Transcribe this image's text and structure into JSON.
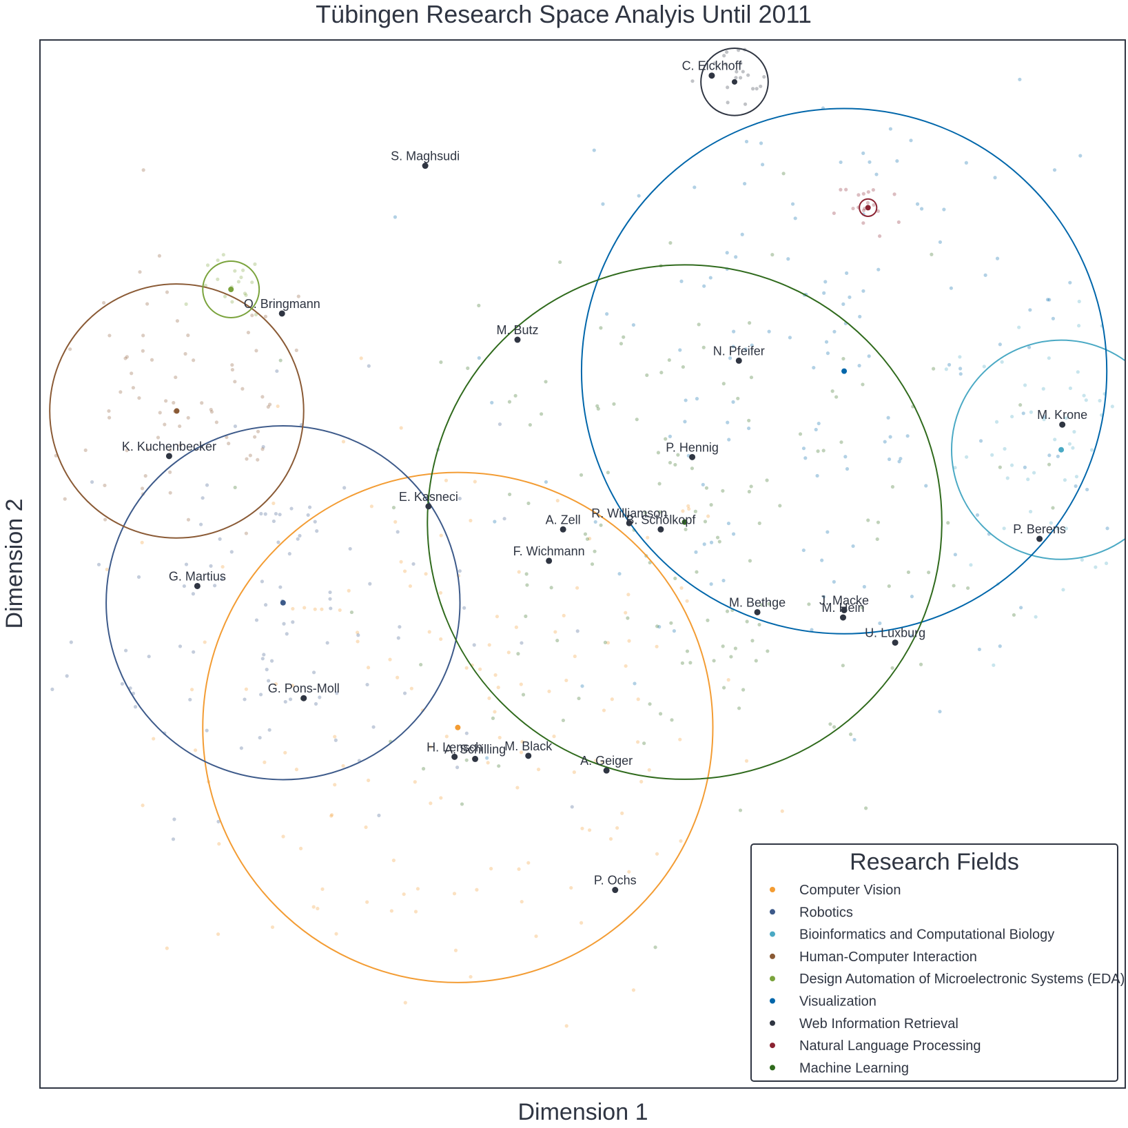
{
  "chart_data": {
    "type": "scatter",
    "title": "Tübingen Research Space Analyis Until 2011",
    "xlabel": "Dimension 1",
    "ylabel": "Dimension 2",
    "xlim": [
      0,
      100
    ],
    "ylim": [
      0,
      100
    ],
    "grid": false,
    "legend": {
      "title": "Research Fields",
      "position": "bottom-right"
    },
    "fields": [
      {
        "name": "Computer Vision",
        "color": "#f39c33"
      },
      {
        "name": "Robotics",
        "color": "#3d5a8a"
      },
      {
        "name": "Bioinformatics and Computational Biology",
        "color": "#4aa9c4"
      },
      {
        "name": "Human-Computer Interaction",
        "color": "#8a5a35"
      },
      {
        "name": "Design Automation of Microelectronic Systems (EDA)",
        "color": "#7aa33c"
      },
      {
        "name": "Visualization",
        "color": "#0066aa"
      },
      {
        "name": "Web Information Retrieval",
        "color": "#2f3542"
      },
      {
        "name": "Natural Language Processing",
        "color": "#8b2332"
      },
      {
        "name": "Machine Learning",
        "color": "#2f6a1c"
      }
    ],
    "field_circles": [
      {
        "field": "Computer Vision",
        "cx": 38.5,
        "cy": 34.4,
        "r": 23.5
      },
      {
        "field": "Robotics",
        "cx": 22.4,
        "cy": 46.3,
        "r": 16.3
      },
      {
        "field": "Bioinformatics and Computational Biology",
        "cx": 94.1,
        "cy": 60.9,
        "r": 10.1
      },
      {
        "field": "Human-Computer Interaction",
        "cx": 12.6,
        "cy": 64.6,
        "r": 11.7
      },
      {
        "field": "Design Automation of Microelectronic Systems (EDA)",
        "cx": 17.6,
        "cy": 76.2,
        "r": 2.6
      },
      {
        "field": "Visualization",
        "cx": 74.1,
        "cy": 68.4,
        "r": 24.2
      },
      {
        "field": "Web Information Retrieval",
        "cx": 64.0,
        "cy": 96.0,
        "r": 3.1
      },
      {
        "field": "Natural Language Processing",
        "cx": 76.3,
        "cy": 84.0,
        "r": 0.8
      },
      {
        "field": "Machine Learning",
        "cx": 59.4,
        "cy": 54.0,
        "r": 23.7
      }
    ],
    "researchers": [
      {
        "name": "C. Eickhoff",
        "x": 61.9,
        "y": 96.6
      },
      {
        "name": "S. Maghsudi",
        "x": 35.5,
        "y": 88.0
      },
      {
        "name": "O. Bringmann",
        "x": 22.3,
        "y": 73.9
      },
      {
        "name": "M. Butz",
        "x": 44.0,
        "y": 71.4
      },
      {
        "name": "N. Pfeifer",
        "x": 64.4,
        "y": 69.4
      },
      {
        "name": "M. Krone",
        "x": 94.2,
        "y": 63.3
      },
      {
        "name": "K. Kuchenbecker",
        "x": 11.9,
        "y": 60.3
      },
      {
        "name": "P. Hennig",
        "x": 60.1,
        "y": 60.2
      },
      {
        "name": "E. Kasneci",
        "x": 35.8,
        "y": 55.5
      },
      {
        "name": "A. Zell",
        "x": 48.2,
        "y": 53.3
      },
      {
        "name": "R. Williamson",
        "x": 54.3,
        "y": 53.9
      },
      {
        "name": "B. Schölkopf",
        "x": 57.2,
        "y": 53.3
      },
      {
        "name": "F. Wichmann",
        "x": 46.9,
        "y": 50.3
      },
      {
        "name": "P. Berens",
        "x": 92.1,
        "y": 52.4
      },
      {
        "name": "G. Martius",
        "x": 14.5,
        "y": 47.9
      },
      {
        "name": "M. Bethge",
        "x": 66.1,
        "y": 45.4
      },
      {
        "name": "J. Macke",
        "x": 74.1,
        "y": 45.6
      },
      {
        "name": "M. Hein",
        "x": 74.0,
        "y": 44.9
      },
      {
        "name": "U. Luxburg",
        "x": 78.8,
        "y": 42.5
      },
      {
        "name": "G. Pons-Moll",
        "x": 24.3,
        "y": 37.2
      },
      {
        "name": "H. Lensch",
        "x": 38.2,
        "y": 31.6
      },
      {
        "name": "A. Schilling",
        "x": 40.1,
        "y": 31.4
      },
      {
        "name": "M. Black",
        "x": 45.0,
        "y": 31.7
      },
      {
        "name": "A. Geiger",
        "x": 52.2,
        "y": 30.3
      },
      {
        "name": "P. Ochs",
        "x": 53.0,
        "y": 18.9
      }
    ]
  }
}
